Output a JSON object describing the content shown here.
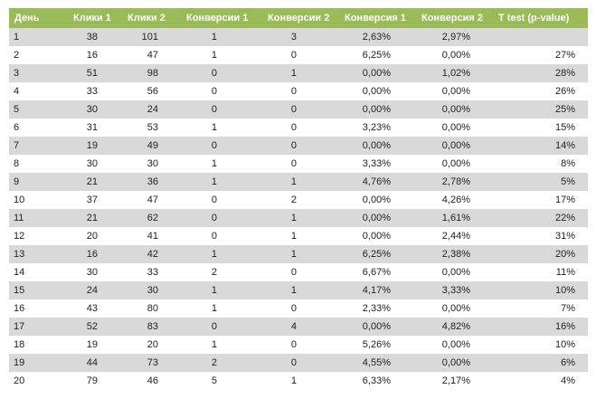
{
  "table": {
    "header": [
      "День",
      "Клики 1",
      "Клики 2",
      "Конверсии 1",
      "Конверсии 2",
      "Конверсия 1",
      "Конверсия 2",
      "T test (p-value)"
    ],
    "rows": [
      [
        "1",
        "38",
        "101",
        "1",
        "3",
        "2,63%",
        "2,97%",
        null
      ],
      [
        "2",
        "16",
        "47",
        "1",
        "0",
        "6,25%",
        "0,00%",
        "27%"
      ],
      [
        "3",
        "51",
        "98",
        "0",
        "1",
        "0,00%",
        "1,02%",
        "28%"
      ],
      [
        "4",
        "33",
        "56",
        "0",
        "0",
        "0,00%",
        "0,00%",
        "26%"
      ],
      [
        "5",
        "30",
        "24",
        "0",
        "0",
        "0,00%",
        "0,00%",
        "25%"
      ],
      [
        "6",
        "31",
        "53",
        "1",
        "0",
        "3,23%",
        "0,00%",
        "15%"
      ],
      [
        "7",
        "19",
        "49",
        "0",
        "0",
        "0,00%",
        "0,00%",
        "14%"
      ],
      [
        "8",
        "30",
        "30",
        "1",
        "0",
        "3,33%",
        "0,00%",
        "8%"
      ],
      [
        "9",
        "21",
        "36",
        "1",
        "1",
        "4,76%",
        "2,78%",
        "5%"
      ],
      [
        "10",
        "37",
        "47",
        "0",
        "2",
        "0,00%",
        "4,26%",
        "17%"
      ],
      [
        "11",
        "21",
        "62",
        "0",
        "1",
        "0,00%",
        "1,61%",
        "22%"
      ],
      [
        "12",
        "20",
        "41",
        "0",
        "1",
        "0,00%",
        "2,44%",
        "31%"
      ],
      [
        "13",
        "16",
        "42",
        "1",
        "1",
        "6,25%",
        "2,38%",
        "20%"
      ],
      [
        "14",
        "30",
        "33",
        "2",
        "0",
        "6,67%",
        "0,00%",
        "11%"
      ],
      [
        "15",
        "24",
        "30",
        "1",
        "1",
        "4,17%",
        "3,33%",
        "10%"
      ],
      [
        "16",
        "43",
        "80",
        "1",
        "0",
        "2,33%",
        "0,00%",
        "7%"
      ],
      [
        "17",
        "52",
        "83",
        "0",
        "4",
        "0,00%",
        "4,82%",
        "16%"
      ],
      [
        "18",
        "19",
        "20",
        "1",
        "0",
        "5,26%",
        "0,00%",
        "10%"
      ],
      [
        "19",
        "44",
        "73",
        "2",
        "0",
        "4,55%",
        "0,00%",
        "6%"
      ],
      [
        "20",
        "79",
        "46",
        "5",
        "1",
        "6,33%",
        "2,17%",
        "4%"
      ]
    ]
  }
}
